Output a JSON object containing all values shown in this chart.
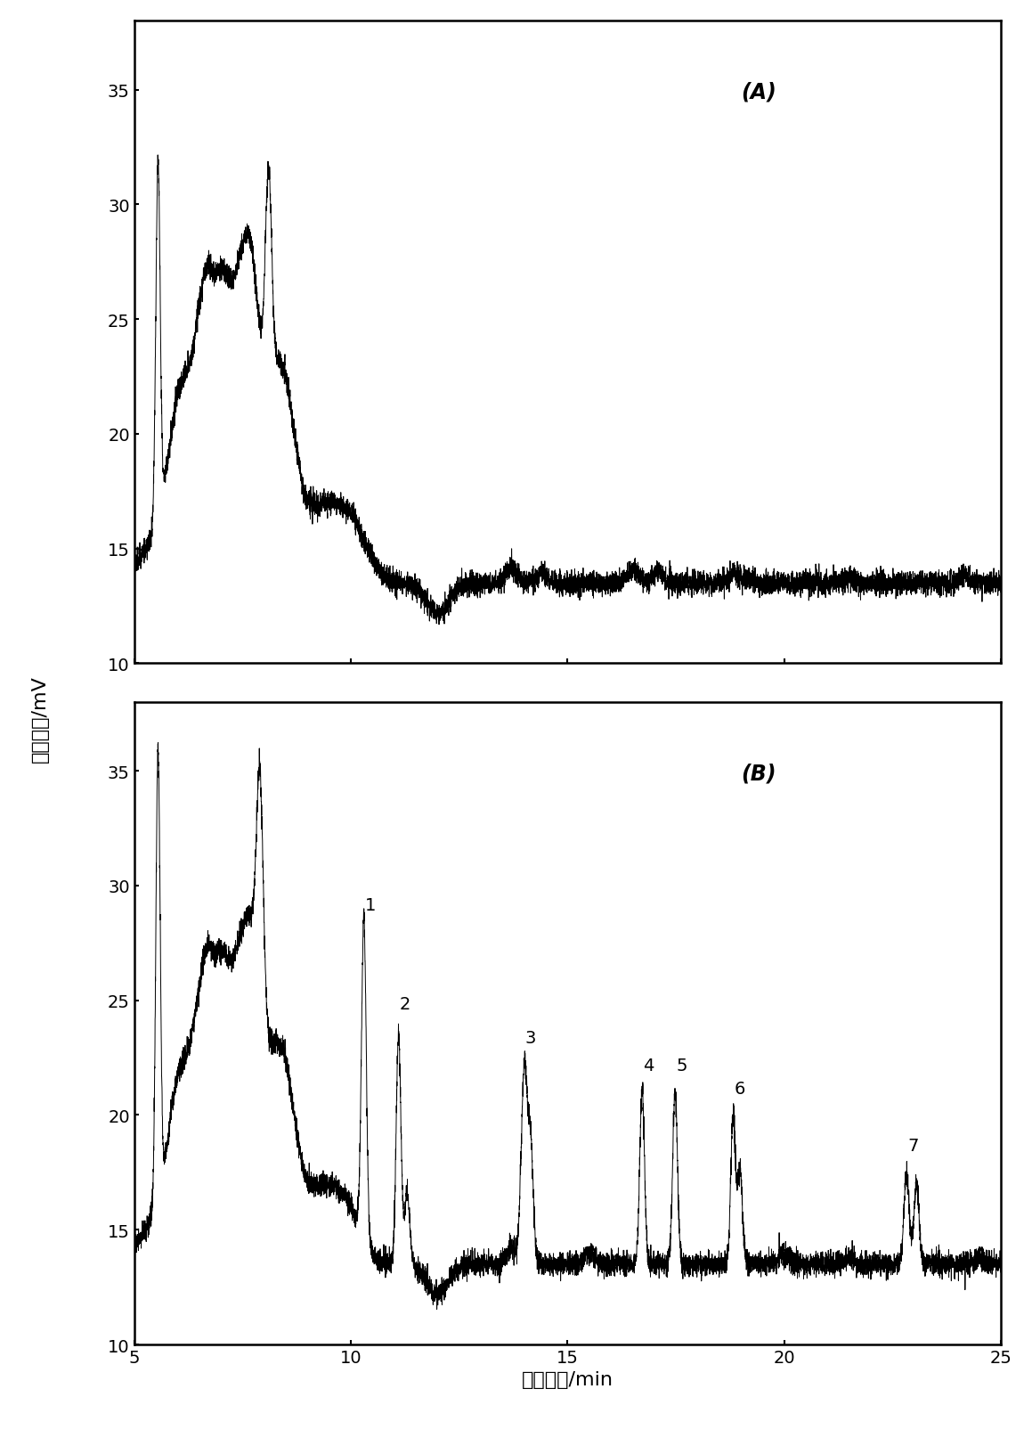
{
  "title_A": "(A)",
  "title_B": "(B)",
  "xlabel": "保留时间/min",
  "ylabel": "信号强度/mV",
  "xlim": [
    5,
    25
  ],
  "ylim_A": [
    10,
    38
  ],
  "ylim_B": [
    10,
    38
  ],
  "yticks": [
    10,
    15,
    20,
    25,
    30,
    35
  ],
  "xticks": [
    5,
    10,
    15,
    20,
    25
  ],
  "background_color": "#ffffff",
  "line_color": "#000000",
  "baseline": 13.5,
  "noise_amplitude": 0.25,
  "figsize": [
    11.59,
    16.15
  ],
  "dpi": 100
}
